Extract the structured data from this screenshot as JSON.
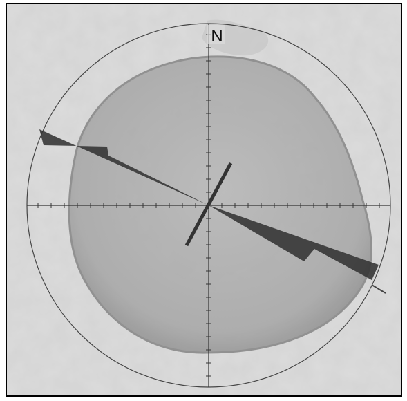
{
  "compass": {
    "north_label": "N"
  }
}
